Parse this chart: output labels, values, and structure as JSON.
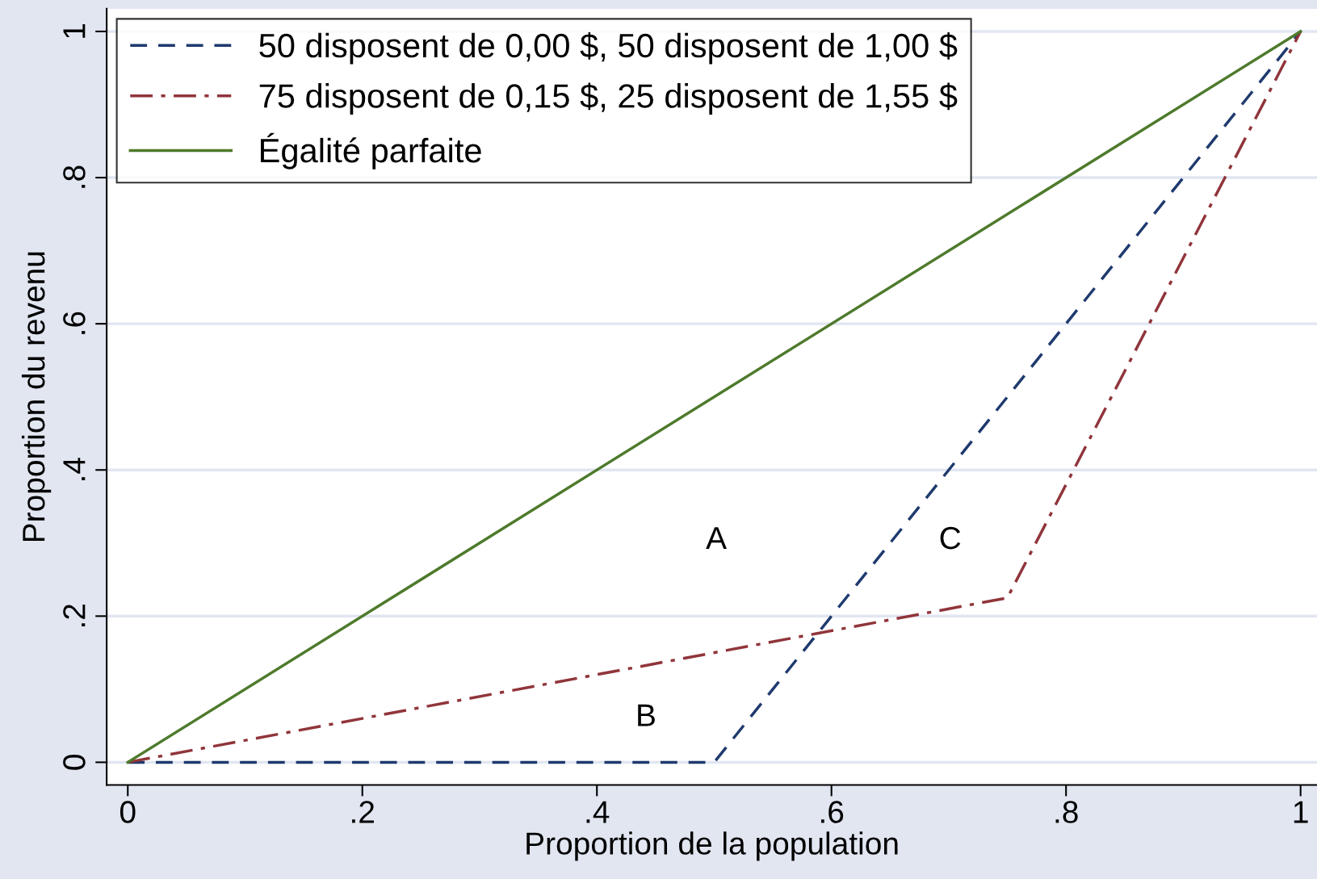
{
  "chart_data": {
    "type": "line",
    "xlabel": "Proportion de la population",
    "ylabel": "Proportion du revenu",
    "series": [
      {
        "name": "50 disposent de 0,00 $, 50 disposent de 1,00 $",
        "color": "#1f3a6e",
        "x": [
          0,
          0.5,
          1
        ],
        "values": [
          0,
          0,
          1
        ],
        "line_style": "dashed"
      },
      {
        "name": "75 disposent de 0,15 $, 25 disposent de 1,55 $",
        "color": "#90353b",
        "x": [
          0,
          0.75,
          1
        ],
        "values": [
          0,
          0.225,
          1
        ],
        "line_style": "dashdot"
      },
      {
        "name": "Égalité parfaite",
        "color": "#4e7a2c",
        "x": [
          0,
          1
        ],
        "values": [
          0,
          1
        ],
        "line_style": "solid"
      }
    ],
    "annotations": [
      "A",
      "B",
      "C"
    ],
    "xlim": [
      -0.018,
      1.014
    ],
    "ylim": [
      -0.031,
      1.031
    ],
    "xticks": [
      0,
      {
        "value": 0.2,
        "label": ".2"
      },
      {
        "value": 0.4,
        "label": ".4"
      },
      {
        "value": 0.6,
        "label": ".6"
      },
      {
        "value": 0.8,
        "label": ".8"
      },
      1
    ],
    "yticks": [
      0,
      {
        "value": 0.2,
        "label": ".2"
      },
      {
        "value": 0.4,
        "label": ".4"
      },
      {
        "value": 0.6,
        "label": ".6"
      },
      {
        "value": 0.8,
        "label": ".8"
      },
      1
    ],
    "grid": "y",
    "legend": "top left",
    "marker": "none"
  }
}
